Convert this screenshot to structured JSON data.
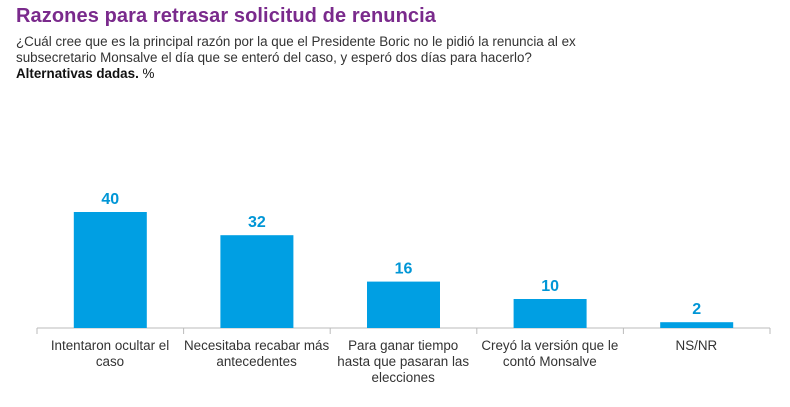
{
  "chart_data": {
    "type": "bar",
    "title": "Razones para retrasar solicitud de renuncia",
    "subtitle": "¿Cuál cree que es la principal razón por la que el Presidente Boric no le pidió la renuncia al ex subsecretario Monsalve el día que se enteró del caso, y esperó dos días para hacerlo?",
    "note_bold": "Alternativas dadas.",
    "note_unit": "%",
    "categories": [
      "Intentaron ocultar el caso",
      "Necesitaba recabar más antecedentes",
      "Para ganar tiempo hasta que pasaran las elecciones",
      "Creyó la versión que le contó Monsalve",
      "NS/NR"
    ],
    "values": [
      40,
      32,
      16,
      10,
      2
    ],
    "ylim": [
      0,
      40
    ],
    "grid": false,
    "bar_color": "#009fe3",
    "label_color": "#0096d6",
    "title_color": "#7a2a8c"
  }
}
